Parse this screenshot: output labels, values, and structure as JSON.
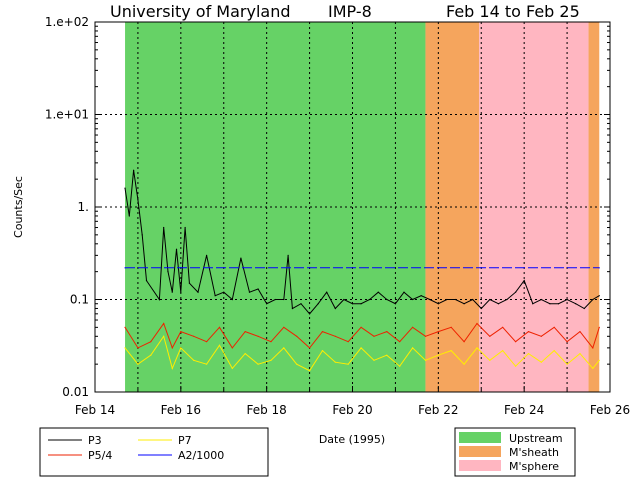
{
  "chart_data": {
    "type": "line",
    "title": {
      "left": "University of Maryland",
      "center": "IMP-8",
      "right": "Feb 14 to Feb 25"
    },
    "xlabel": "Date (1995)",
    "ylabel": "Counts/Sec",
    "yscale": "log",
    "ylim": [
      0.01,
      100
    ],
    "xlim": [
      14,
      26
    ],
    "x_ticks": [
      {
        "v": 14,
        "label": "Feb 14"
      },
      {
        "v": 16,
        "label": "Feb 16"
      },
      {
        "v": 18,
        "label": "Feb 18"
      },
      {
        "v": 20,
        "label": "Feb 20"
      },
      {
        "v": 22,
        "label": "Feb 22"
      },
      {
        "v": 24,
        "label": "Feb 24"
      },
      {
        "v": 26,
        "label": "Feb 26"
      }
    ],
    "y_ticks": [
      {
        "v": 100,
        "label": "1.e+02"
      },
      {
        "v": 10,
        "label": "1.e+01"
      },
      {
        "v": 1,
        "label": "1."
      },
      {
        "v": 0.1,
        "label": "0.1"
      },
      {
        "v": 0.01,
        "label": "0.01"
      }
    ],
    "grid": true,
    "regions": [
      {
        "name": "Upstream",
        "start": 14.7,
        "end": 21.7,
        "color": "#66d266"
      },
      {
        "name": "M'sheath",
        "start": 21.7,
        "end": 22.95,
        "color": "#f5a55d"
      },
      {
        "name": "M'sphere",
        "start": 22.95,
        "end": 25.5,
        "color": "#ffb6c1"
      },
      {
        "name": "M'sheath",
        "start": 25.5,
        "end": 25.75,
        "color": "#f5a55d"
      }
    ],
    "region_legend": [
      {
        "label": "Upstream",
        "color": "#66d266"
      },
      {
        "label": "M'sheath",
        "color": "#f5a55d"
      },
      {
        "label": "M'sphere",
        "color": "#ffb6c1"
      }
    ],
    "series": [
      {
        "name": "P3",
        "color": "#000000",
        "x": [
          14.7,
          14.8,
          14.9,
          15.0,
          15.1,
          15.2,
          15.5,
          15.6,
          15.7,
          15.8,
          15.9,
          16.0,
          16.1,
          16.2,
          16.4,
          16.6,
          16.8,
          17.0,
          17.2,
          17.4,
          17.6,
          17.8,
          18.0,
          18.2,
          18.4,
          18.5,
          18.6,
          18.8,
          19.0,
          19.2,
          19.4,
          19.6,
          19.8,
          20.0,
          20.2,
          20.4,
          20.6,
          20.8,
          21.0,
          21.2,
          21.4,
          21.6,
          21.8,
          22.0,
          22.2,
          22.4,
          22.6,
          22.8,
          23.0,
          23.2,
          23.4,
          23.6,
          23.8,
          24.0,
          24.2,
          24.4,
          24.6,
          24.8,
          25.0,
          25.2,
          25.4,
          25.6,
          25.75
        ],
        "y": [
          1.6,
          0.8,
          2.5,
          1.2,
          0.5,
          0.16,
          0.1,
          0.6,
          0.2,
          0.12,
          0.35,
          0.12,
          0.6,
          0.15,
          0.12,
          0.3,
          0.11,
          0.12,
          0.1,
          0.28,
          0.12,
          0.13,
          0.09,
          0.1,
          0.1,
          0.3,
          0.08,
          0.09,
          0.07,
          0.09,
          0.12,
          0.08,
          0.1,
          0.09,
          0.09,
          0.1,
          0.12,
          0.1,
          0.09,
          0.12,
          0.1,
          0.11,
          0.1,
          0.09,
          0.1,
          0.1,
          0.09,
          0.1,
          0.08,
          0.1,
          0.09,
          0.1,
          0.12,
          0.16,
          0.09,
          0.1,
          0.09,
          0.09,
          0.1,
          0.09,
          0.08,
          0.1,
          0.11
        ]
      },
      {
        "name": "P5/4",
        "color": "#ee2200",
        "x": [
          14.7,
          15.0,
          15.3,
          15.6,
          15.8,
          16.0,
          16.3,
          16.6,
          16.9,
          17.2,
          17.5,
          17.8,
          18.1,
          18.4,
          18.7,
          19.0,
          19.3,
          19.6,
          19.9,
          20.2,
          20.5,
          20.8,
          21.1,
          21.4,
          21.7,
          22.0,
          22.3,
          22.6,
          22.9,
          23.2,
          23.5,
          23.8,
          24.1,
          24.4,
          24.7,
          25.0,
          25.3,
          25.6,
          25.75
        ],
        "y": [
          0.05,
          0.03,
          0.035,
          0.055,
          0.03,
          0.045,
          0.04,
          0.035,
          0.05,
          0.03,
          0.045,
          0.04,
          0.035,
          0.05,
          0.04,
          0.03,
          0.045,
          0.04,
          0.035,
          0.05,
          0.04,
          0.045,
          0.035,
          0.05,
          0.04,
          0.045,
          0.05,
          0.035,
          0.055,
          0.04,
          0.05,
          0.035,
          0.045,
          0.04,
          0.05,
          0.035,
          0.045,
          0.03,
          0.05
        ]
      },
      {
        "name": "P7",
        "color": "#ffee00",
        "x": [
          14.7,
          15.0,
          15.3,
          15.6,
          15.8,
          16.0,
          16.3,
          16.6,
          16.9,
          17.2,
          17.5,
          17.8,
          18.1,
          18.4,
          18.7,
          19.0,
          19.3,
          19.6,
          19.9,
          20.2,
          20.5,
          20.8,
          21.1,
          21.4,
          21.7,
          22.0,
          22.3,
          22.6,
          22.9,
          23.2,
          23.5,
          23.8,
          24.1,
          24.4,
          24.7,
          25.0,
          25.3,
          25.6,
          25.75
        ],
        "y": [
          0.03,
          0.02,
          0.025,
          0.04,
          0.018,
          0.03,
          0.022,
          0.02,
          0.032,
          0.018,
          0.026,
          0.02,
          0.022,
          0.03,
          0.02,
          0.017,
          0.028,
          0.021,
          0.02,
          0.03,
          0.022,
          0.025,
          0.019,
          0.03,
          0.022,
          0.025,
          0.028,
          0.02,
          0.03,
          0.022,
          0.028,
          0.019,
          0.026,
          0.021,
          0.028,
          0.02,
          0.026,
          0.018,
          0.022
        ]
      },
      {
        "name": "A2/1000",
        "color": "#0000ff",
        "x": [
          14.7,
          25.75
        ],
        "y": [
          0.22,
          0.22
        ]
      }
    ]
  },
  "legend": {
    "series_labels": {
      "p3": "P3",
      "p54": "P5/4",
      "p7": "P7",
      "a2": "A2/1000"
    }
  }
}
